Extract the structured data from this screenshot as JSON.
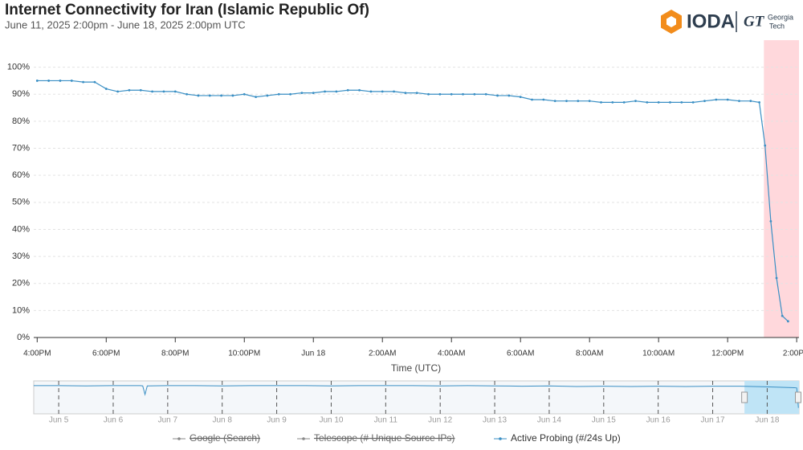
{
  "header": {
    "title": "Internet Connectivity for Iran (Islamic Republic Of)",
    "subtitle": "June 11, 2025 2:00pm - June 18, 2025 2:00pm UTC",
    "logo": "IODA",
    "partner": [
      "Georgia",
      "Tech"
    ]
  },
  "chart_data": {
    "type": "line",
    "x_label": "Time (UTC)",
    "xlim": [
      "2025-06-17T15:54Z",
      "2025-06-18T14:04Z"
    ],
    "xticks": [
      {
        "value": "2025-06-17T16:00Z",
        "label": "4:00PM"
      },
      {
        "value": "2025-06-17T18:00Z",
        "label": "6:00PM"
      },
      {
        "value": "2025-06-17T20:00Z",
        "label": "8:00PM"
      },
      {
        "value": "2025-06-17T22:00Z",
        "label": "10:00PM"
      },
      {
        "value": "2025-06-18T00:00Z",
        "label": "Jun 18"
      },
      {
        "value": "2025-06-18T02:00Z",
        "label": "2:00AM"
      },
      {
        "value": "2025-06-18T04:00Z",
        "label": "4:00AM"
      },
      {
        "value": "2025-06-18T06:00Z",
        "label": "6:00AM"
      },
      {
        "value": "2025-06-18T08:00Z",
        "label": "8:00AM"
      },
      {
        "value": "2025-06-18T10:00Z",
        "label": "10:00AM"
      },
      {
        "value": "2025-06-18T12:00Z",
        "label": "12:00PM"
      },
      {
        "value": "2025-06-18T14:00Z",
        "label": "2:00PM"
      }
    ],
    "ylim": [
      0,
      110
    ],
    "yticks": [
      {
        "value": 0,
        "label": "0%"
      },
      {
        "value": 10,
        "label": "10%"
      },
      {
        "value": 20,
        "label": "20%"
      },
      {
        "value": 30,
        "label": "30%"
      },
      {
        "value": 40,
        "label": "40%"
      },
      {
        "value": 50,
        "label": "50%"
      },
      {
        "value": 60,
        "label": "60%"
      },
      {
        "value": 70,
        "label": "70%"
      },
      {
        "value": 80,
        "label": "80%"
      },
      {
        "value": 90,
        "label": "90%"
      },
      {
        "value": 100,
        "label": "100%"
      }
    ],
    "grid": true,
    "highlight": {
      "start": "2025-06-18T13:03Z",
      "color": "#ffd8dc"
    },
    "x": [
      "2025-06-17T16:00Z",
      "2025-06-17T16:20Z",
      "2025-06-17T16:40Z",
      "2025-06-17T17:00Z",
      "2025-06-17T17:20Z",
      "2025-06-17T17:40Z",
      "2025-06-17T18:00Z",
      "2025-06-17T18:20Z",
      "2025-06-17T18:40Z",
      "2025-06-17T19:00Z",
      "2025-06-17T19:20Z",
      "2025-06-17T19:40Z",
      "2025-06-17T20:00Z",
      "2025-06-17T20:20Z",
      "2025-06-17T20:40Z",
      "2025-06-17T21:00Z",
      "2025-06-17T21:20Z",
      "2025-06-17T21:40Z",
      "2025-06-17T22:00Z",
      "2025-06-17T22:20Z",
      "2025-06-17T22:40Z",
      "2025-06-17T23:00Z",
      "2025-06-17T23:20Z",
      "2025-06-17T23:40Z",
      "2025-06-18T00:00Z",
      "2025-06-18T00:20Z",
      "2025-06-18T00:40Z",
      "2025-06-18T01:00Z",
      "2025-06-18T01:20Z",
      "2025-06-18T01:40Z",
      "2025-06-18T02:00Z",
      "2025-06-18T02:20Z",
      "2025-06-18T02:40Z",
      "2025-06-18T03:00Z",
      "2025-06-18T03:20Z",
      "2025-06-18T03:40Z",
      "2025-06-18T04:00Z",
      "2025-06-18T04:20Z",
      "2025-06-18T04:40Z",
      "2025-06-18T05:00Z",
      "2025-06-18T05:20Z",
      "2025-06-18T05:40Z",
      "2025-06-18T06:00Z",
      "2025-06-18T06:20Z",
      "2025-06-18T06:40Z",
      "2025-06-18T07:00Z",
      "2025-06-18T07:20Z",
      "2025-06-18T07:40Z",
      "2025-06-18T08:00Z",
      "2025-06-18T08:20Z",
      "2025-06-18T08:40Z",
      "2025-06-18T09:00Z",
      "2025-06-18T09:20Z",
      "2025-06-18T09:40Z",
      "2025-06-18T10:00Z",
      "2025-06-18T10:20Z",
      "2025-06-18T10:40Z",
      "2025-06-18T11:00Z",
      "2025-06-18T11:20Z",
      "2025-06-18T11:40Z",
      "2025-06-18T12:00Z",
      "2025-06-18T12:20Z",
      "2025-06-18T12:40Z",
      "2025-06-18T12:55Z",
      "2025-06-18T13:05Z",
      "2025-06-18T13:15Z",
      "2025-06-18T13:25Z",
      "2025-06-18T13:35Z",
      "2025-06-18T13:45Z"
    ],
    "series": [
      {
        "name": "Active Probing (#/24s Up)",
        "color": "#3a8fc4",
        "values": [
          95,
          95,
          95,
          95,
          94.5,
          94.5,
          92,
          91,
          91.5,
          91.5,
          91,
          91,
          91,
          90,
          89.5,
          89.5,
          89.5,
          89.5,
          90,
          89,
          89.5,
          90,
          90,
          90.5,
          90.5,
          91,
          91,
          91.5,
          91.5,
          91,
          91,
          91,
          90.5,
          90.5,
          90,
          90,
          90,
          90,
          90,
          90,
          89.5,
          89.5,
          89,
          88,
          88,
          87.5,
          87.5,
          87.5,
          87.5,
          87,
          87,
          87,
          87.5,
          87,
          87,
          87,
          87,
          87,
          87.5,
          88,
          88,
          87.5,
          87.5,
          87,
          71,
          43,
          22,
          8,
          6
        ]
      }
    ],
    "legend": [
      {
        "name": "Google (Search)",
        "color": "#888888",
        "visible": false
      },
      {
        "name": "Telescope (# Unique Source IPs)",
        "color": "#888888",
        "visible": false
      },
      {
        "name": "Active Probing (#/24s Up)",
        "color": "#3a8fc4",
        "visible": true
      }
    ],
    "navigator": {
      "xlim": [
        "2025-06-04T13:00Z",
        "2025-06-18T14:00Z"
      ],
      "ylim": [
        0,
        100
      ],
      "selection": [
        "2025-06-17T14:00Z",
        "2025-06-18T14:00Z"
      ],
      "xticks": [
        {
          "value": "2025-06-05T00:00Z",
          "label": "Jun 5"
        },
        {
          "value": "2025-06-06T00:00Z",
          "label": "Jun 6"
        },
        {
          "value": "2025-06-07T00:00Z",
          "label": "Jun 7"
        },
        {
          "value": "2025-06-08T00:00Z",
          "label": "Jun 8"
        },
        {
          "value": "2025-06-09T00:00Z",
          "label": "Jun 9"
        },
        {
          "value": "2025-06-10T00:00Z",
          "label": "Jun 10"
        },
        {
          "value": "2025-06-11T00:00Z",
          "label": "Jun 11"
        },
        {
          "value": "2025-06-12T00:00Z",
          "label": "Jun 12"
        },
        {
          "value": "2025-06-13T00:00Z",
          "label": "Jun 13"
        },
        {
          "value": "2025-06-14T00:00Z",
          "label": "Jun 14"
        },
        {
          "value": "2025-06-15T00:00Z",
          "label": "Jun 15"
        },
        {
          "value": "2025-06-16T00:00Z",
          "label": "Jun 16"
        },
        {
          "value": "2025-06-17T00:00Z",
          "label": "Jun 17"
        },
        {
          "value": "2025-06-18T00:00Z",
          "label": "Jun 18"
        }
      ],
      "x": [
        "2025-06-04T13:00Z",
        "2025-06-05T00:00Z",
        "2025-06-05T12:00Z",
        "2025-06-06T00:00Z",
        "2025-06-06T12:00Z",
        "2025-06-06T13:00Z",
        "2025-06-06T14:00Z",
        "2025-06-06T15:00Z",
        "2025-06-07T00:00Z",
        "2025-06-07T12:00Z",
        "2025-06-08T00:00Z",
        "2025-06-08T12:00Z",
        "2025-06-09T00:00Z",
        "2025-06-09T12:00Z",
        "2025-06-10T00:00Z",
        "2025-06-10T12:00Z",
        "2025-06-11T00:00Z",
        "2025-06-11T12:00Z",
        "2025-06-12T00:00Z",
        "2025-06-12T12:00Z",
        "2025-06-13T00:00Z",
        "2025-06-13T12:00Z",
        "2025-06-14T00:00Z",
        "2025-06-14T12:00Z",
        "2025-06-15T00:00Z",
        "2025-06-15T12:00Z",
        "2025-06-16T00:00Z",
        "2025-06-16T12:00Z",
        "2025-06-17T00:00Z",
        "2025-06-17T12:00Z",
        "2025-06-18T00:00Z",
        "2025-06-18T12:00Z",
        "2025-06-18T13:00Z",
        "2025-06-18T13:45Z"
      ],
      "values": [
        95,
        95,
        94,
        95,
        95,
        94,
        65,
        94,
        95,
        95,
        94,
        95,
        95,
        95,
        94,
        95,
        95,
        95,
        94,
        95,
        94,
        93,
        94,
        92,
        93,
        92,
        93,
        92,
        93,
        93,
        91,
        88,
        87,
        20
      ]
    }
  }
}
